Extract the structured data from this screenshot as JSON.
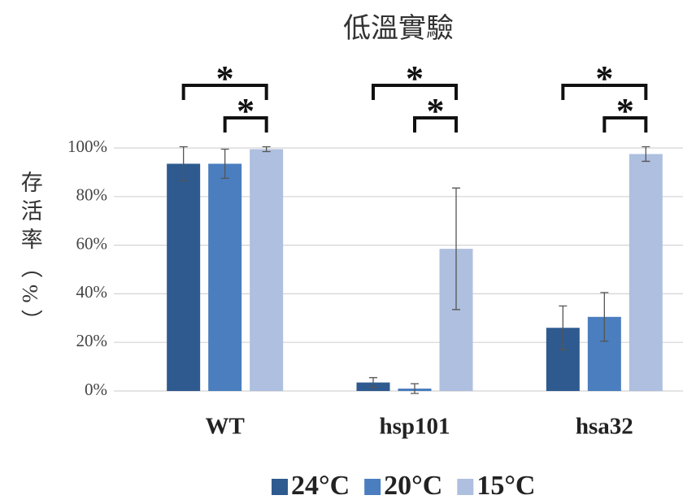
{
  "chart_data": {
    "type": "bar",
    "title": "低溫實驗",
    "ylabel": "存活率（%）",
    "categories": [
      "WT",
      "hsp101",
      "hsa32"
    ],
    "series": [
      {
        "name": "24°C",
        "color": "#2f5a8f",
        "values": [
          93.5,
          3.5,
          26
        ],
        "errors": [
          7,
          2,
          9
        ]
      },
      {
        "name": "20°C",
        "color": "#4a7ebf",
        "values": [
          93.5,
          1,
          30.5
        ],
        "errors": [
          6,
          2,
          10
        ]
      },
      {
        "name": "15°C",
        "color": "#aebfdf",
        "values": [
          99.5,
          58.5,
          97.5
        ],
        "errors": [
          1,
          25,
          3
        ]
      }
    ],
    "ylim": [
      0,
      100
    ],
    "yticks": [
      {
        "value": 0,
        "label": "0%"
      },
      {
        "value": 20,
        "label": "20%"
      },
      {
        "value": 40,
        "label": "40%"
      },
      {
        "value": 60,
        "label": "60%"
      },
      {
        "value": 80,
        "label": "80%"
      },
      {
        "value": 100,
        "label": "100%"
      }
    ],
    "grid": true,
    "significance": [
      {
        "group": 0,
        "series": [
          0,
          2
        ],
        "label": "*"
      },
      {
        "group": 0,
        "series": [
          1,
          2
        ],
        "label": "*"
      },
      {
        "group": 1,
        "series": [
          0,
          2
        ],
        "label": "*"
      },
      {
        "group": 1,
        "series": [
          1,
          2
        ],
        "label": "*"
      },
      {
        "group": 2,
        "series": [
          0,
          2
        ],
        "label": "*"
      },
      {
        "group": 2,
        "series": [
          1,
          2
        ],
        "label": "*"
      }
    ]
  }
}
